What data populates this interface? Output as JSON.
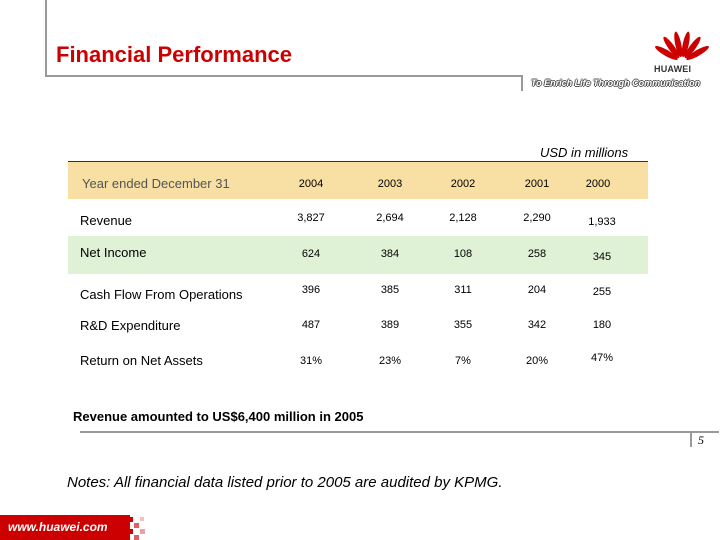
{
  "header": {
    "title": "Financial Performance",
    "logo_text": "HUAWEI",
    "slogan": "To Enrich Life Through Communication",
    "brand_color": "#cc0000"
  },
  "units_label": "USD in millions",
  "table": {
    "header_label": "Year ended December 31",
    "years": [
      "2004",
      "2003",
      "2002",
      "2001",
      "2000"
    ],
    "rows": [
      {
        "label": "Revenue",
        "values": [
          "3,827",
          "2,694",
          "2,128",
          "2,290",
          "1,933"
        ]
      },
      {
        "label": "Net Income",
        "values": [
          "624",
          "384",
          "108",
          "258",
          "345"
        ]
      },
      {
        "label": "Cash Flow From Operations",
        "values": [
          "396",
          "385",
          "311",
          "204",
          "255"
        ]
      },
      {
        "label": "R&D Expenditure",
        "values": [
          "487",
          "389",
          "355",
          "342",
          "180"
        ]
      },
      {
        "label": "Return on Net Assets",
        "values": [
          "31%",
          "23%",
          "7%",
          "20%",
          "47%"
        ]
      }
    ]
  },
  "note_revenue": "Revenue amounted to US$6,400 million in 2005",
  "page_number": "5",
  "note_audit": "Notes: All financial data listed prior to 2005 are audited by KPMG.",
  "footer_url": "www.huawei.com"
}
